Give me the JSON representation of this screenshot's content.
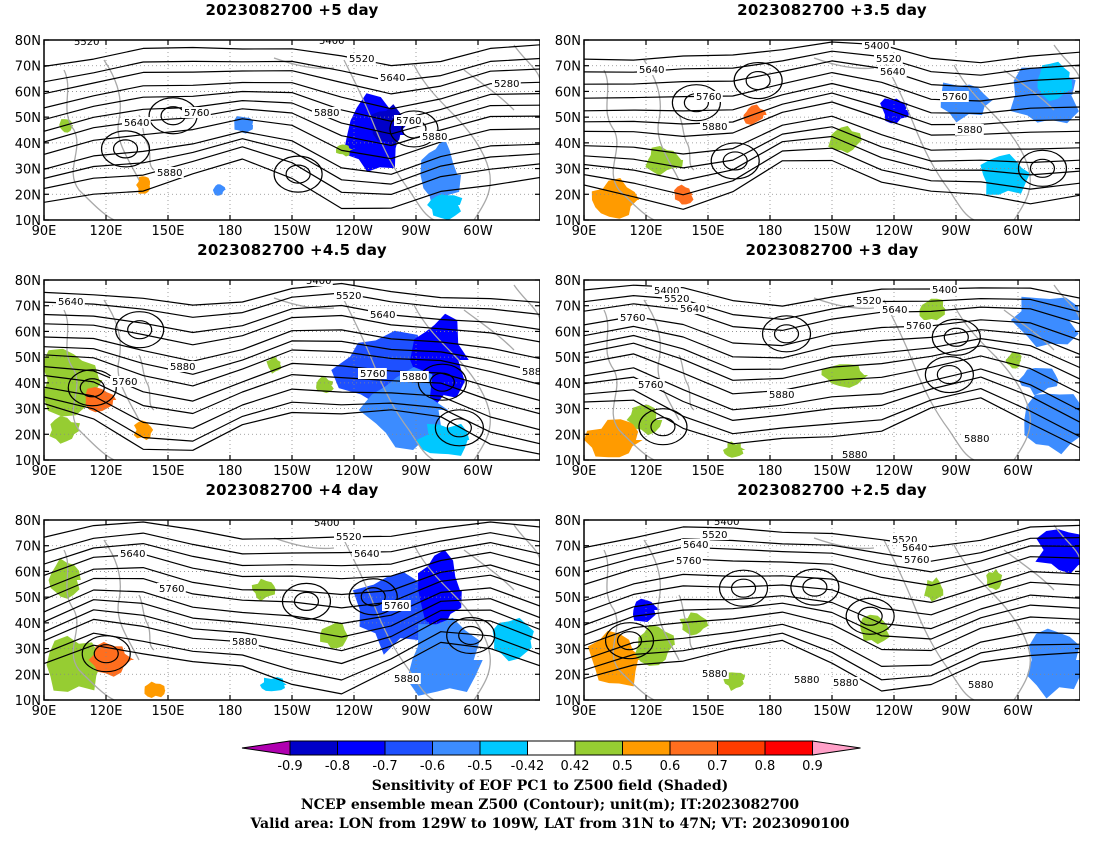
{
  "panels": [
    {
      "title": "2023082700 +5 day",
      "contour_labels": [
        "5520",
        "5400",
        "5520",
        "5640",
        "5280",
        "5640",
        "5760",
        "5880",
        "5760",
        "5880",
        "5880"
      ]
    },
    {
      "title": "2023082700 +3.5 day",
      "contour_labels": [
        "5400",
        "5520",
        "5640",
        "5640",
        "5760",
        "5760",
        "5880",
        "5880"
      ]
    },
    {
      "title": "2023082700 +4.5 day",
      "contour_labels": [
        "5400",
        "5640",
        "5520",
        "5640",
        "5760",
        "5880",
        "5760",
        "5880",
        "588"
      ]
    },
    {
      "title": "2023082700 +3 day",
      "contour_labels": [
        "5400",
        "5520",
        "5640",
        "5520",
        "5400",
        "5640",
        "5760",
        "5760",
        "5760",
        "5880",
        "5880",
        "5880"
      ]
    },
    {
      "title": "2023082700 +4 day",
      "contour_labels": [
        "5400",
        "5520",
        "5640",
        "5640",
        "5760",
        "5760",
        "5880",
        "5880"
      ]
    },
    {
      "title": "2023082700 +2.5 day",
      "contour_labels": [
        "5400",
        "5520",
        "5640",
        "5760",
        "5520",
        "5640",
        "5760",
        "5880",
        "5880",
        "5880",
        "5880"
      ]
    }
  ],
  "axes": {
    "lat_labels": [
      "80N",
      "70N",
      "60N",
      "50N",
      "40N",
      "30N",
      "20N",
      "10N"
    ],
    "lon_labels": [
      "90E",
      "120E",
      "150E",
      "180",
      "150W",
      "120W",
      "90W",
      "60W"
    ]
  },
  "colorbar": {
    "labels": [
      "-0.9",
      "-0.8",
      "-0.7",
      "-0.6",
      "-0.5",
      "-0.42",
      "0.42",
      "0.5",
      "0.6",
      "0.7",
      "0.8",
      "0.9"
    ],
    "colors": [
      "#b000b0",
      "#0000c8",
      "#0000ff",
      "#1e50ff",
      "#3c8cff",
      "#00c8ff",
      "#ffffff",
      "#96cd32",
      "#ff9b00",
      "#ff6e1e",
      "#ff3c00",
      "#ff0000",
      "#ffa0c8"
    ]
  },
  "caption": {
    "line1": "Sensitivity of EOF PC1 to Z500 field (Shaded)",
    "line2": "NCEP ensemble mean Z500 (Contour); unit(m); IT:2023082700",
    "line3": "Valid area: LON from 129W to 109W, LAT from 31N to 47N; VT: 2023090100"
  }
}
